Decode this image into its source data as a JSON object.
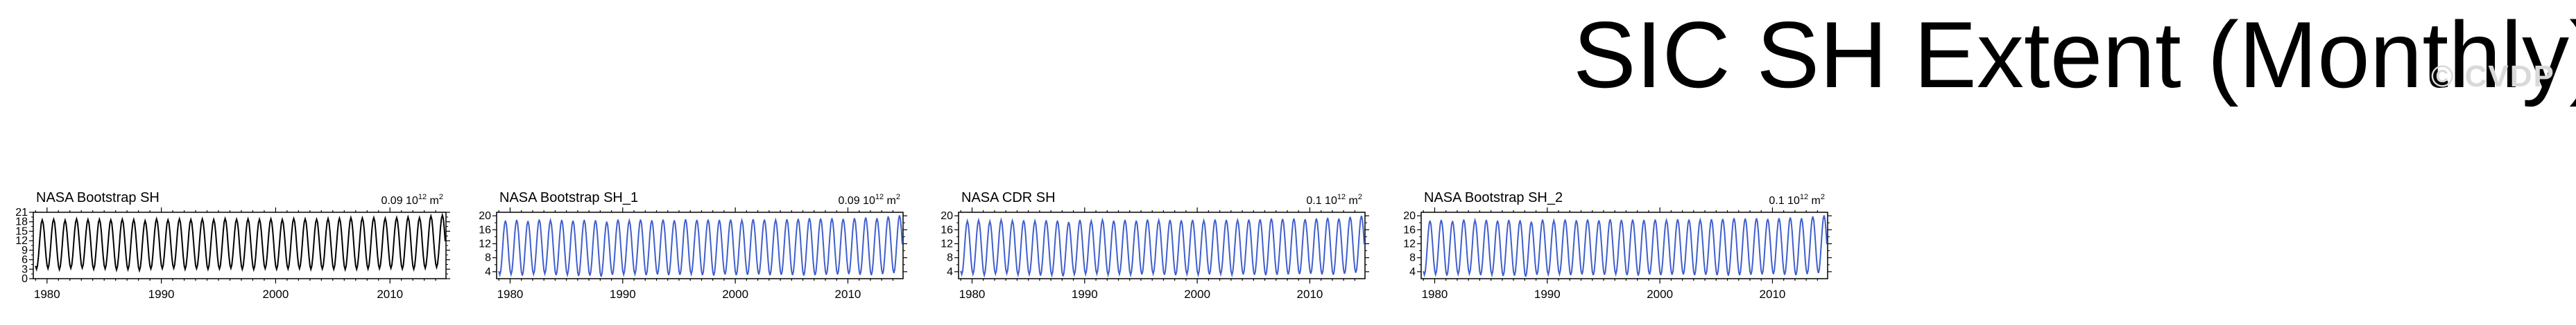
{
  "page": {
    "title": "SIC SH Extent (Monthly)",
    "watermark": "© CVDP"
  },
  "chart_data": [
    {
      "type": "line",
      "title": "NASA Bootstrap SH",
      "rms_value": "0.09",
      "rms_unit": "10",
      "rms_exp": "12",
      "rms_suffix": "m",
      "rms_suffix_exp": "2",
      "line_color": "#000000",
      "xlim": [
        1978.8,
        2014.9
      ],
      "ylim": [
        0,
        21
      ],
      "x_ticks": [
        1980,
        1990,
        2000,
        2010
      ],
      "y_ticks": [
        0,
        3,
        6,
        9,
        12,
        15,
        18,
        21
      ],
      "series": [
        {
          "min": [
            3.0,
            3.2,
            2.9,
            3.3,
            3.4,
            3.0,
            3.1,
            2.8,
            2.9,
            2.6,
            3.1,
            3.2,
            3.3,
            3.0,
            3.2,
            3.0,
            3.1,
            3.3,
            3.0,
            2.9,
            3.2,
            3.0,
            3.1,
            3.2,
            3.0,
            3.1,
            3.0,
            2.9,
            3.0,
            3.1,
            3.2,
            3.3,
            3.1,
            3.0,
            3.3,
            3.6
          ],
          "max": [
            18.6,
            18.8,
            18.5,
            18.9,
            18.7,
            18.8,
            18.6,
            18.8,
            18.7,
            18.3,
            18.9,
            18.6,
            18.9,
            18.7,
            18.9,
            18.7,
            19.0,
            18.8,
            18.9,
            18.8,
            18.9,
            18.7,
            19.0,
            18.9,
            18.8,
            19.0,
            19.1,
            19.3,
            19.2,
            19.3,
            19.1,
            19.3,
            19.5,
            19.3,
            19.8,
            20.1
          ]
        }
      ]
    },
    {
      "type": "line",
      "title": "NASA Bootstrap SH_1",
      "rms_value": "0.09",
      "rms_unit": "10",
      "rms_exp": "12",
      "rms_suffix": "m",
      "rms_suffix_exp": "2",
      "line_color": "#3f5fce",
      "xlim": [
        1978.8,
        2014.9
      ],
      "ylim": [
        2,
        21
      ],
      "x_ticks": [
        1980,
        1990,
        2000,
        2010
      ],
      "y_ticks": [
        4,
        8,
        12,
        16,
        20
      ],
      "series": [
        {
          "min": [
            3.1,
            3.2,
            2.9,
            3.3,
            3.4,
            3.0,
            3.1,
            2.8,
            2.9,
            2.6,
            3.1,
            3.2,
            3.3,
            3.0,
            3.2,
            3.0,
            3.1,
            3.3,
            3.0,
            2.9,
            3.2,
            3.0,
            3.1,
            3.2,
            3.0,
            3.1,
            3.0,
            2.9,
            3.0,
            3.1,
            3.2,
            3.3,
            3.1,
            3.0,
            3.3,
            3.6
          ],
          "max": [
            18.6,
            18.8,
            18.5,
            18.9,
            18.7,
            18.8,
            18.6,
            18.8,
            18.7,
            18.3,
            18.9,
            18.6,
            18.9,
            18.7,
            18.9,
            18.7,
            19.0,
            18.8,
            18.9,
            18.8,
            18.9,
            18.7,
            19.0,
            18.9,
            18.8,
            19.0,
            19.1,
            19.3,
            19.2,
            19.3,
            19.1,
            19.3,
            19.5,
            19.3,
            19.8,
            20.1
          ]
        }
      ]
    },
    {
      "type": "line",
      "title": "NASA CDR SH",
      "rms_value": "0.1",
      "rms_unit": "10",
      "rms_exp": "12",
      "rms_suffix": "m",
      "rms_suffix_exp": "2",
      "line_color": "#3f5fce",
      "xlim": [
        1978.8,
        2014.9
      ],
      "ylim": [
        2,
        21
      ],
      "x_ticks": [
        1980,
        1990,
        2000,
        2010
      ],
      "y_ticks": [
        4,
        8,
        12,
        16,
        20
      ],
      "series": [
        {
          "min": [
            3.2,
            3.3,
            3.0,
            3.4,
            3.5,
            3.1,
            3.2,
            2.9,
            3.0,
            2.7,
            3.2,
            3.3,
            3.4,
            3.1,
            3.3,
            3.1,
            3.2,
            3.4,
            3.1,
            3.0,
            3.3,
            3.1,
            3.2,
            3.3,
            3.1,
            3.2,
            3.1,
            3.0,
            3.1,
            3.2,
            3.3,
            3.4,
            3.2,
            3.1,
            3.4,
            3.7
          ],
          "max": [
            18.5,
            18.7,
            18.4,
            18.8,
            18.6,
            18.7,
            18.5,
            18.7,
            18.6,
            18.2,
            18.8,
            18.5,
            18.8,
            18.6,
            18.8,
            18.6,
            18.9,
            18.7,
            18.8,
            18.7,
            18.8,
            18.6,
            18.9,
            18.8,
            18.7,
            18.9,
            19.0,
            19.2,
            19.1,
            19.2,
            19.0,
            19.2,
            19.4,
            19.2,
            19.7,
            20.0
          ]
        }
      ]
    },
    {
      "type": "line",
      "title": "NASA Bootstrap SH_2",
      "rms_value": "0.1",
      "rms_unit": "10",
      "rms_exp": "12",
      "rms_suffix": "m",
      "rms_suffix_exp": "2",
      "line_color": "#3f5fce",
      "xlim": [
        1978.8,
        2014.9
      ],
      "ylim": [
        2,
        21
      ],
      "x_ticks": [
        1980,
        1990,
        2000,
        2010
      ],
      "y_ticks": [
        4,
        8,
        12,
        16,
        20
      ],
      "series": [
        {
          "min": [
            3.1,
            3.2,
            2.9,
            3.3,
            3.4,
            3.0,
            3.1,
            2.8,
            2.9,
            2.6,
            3.1,
            3.2,
            3.3,
            3.0,
            3.2,
            3.0,
            3.1,
            3.3,
            3.0,
            2.9,
            3.2,
            3.0,
            3.1,
            3.2,
            3.0,
            3.1,
            3.0,
            2.9,
            3.0,
            3.1,
            3.2,
            3.3,
            3.1,
            3.0,
            3.3,
            3.6
          ],
          "max": [
            18.6,
            18.8,
            18.5,
            18.9,
            18.7,
            18.8,
            18.6,
            18.8,
            18.7,
            18.3,
            18.9,
            18.6,
            18.9,
            18.7,
            18.9,
            18.7,
            19.0,
            18.8,
            18.9,
            18.8,
            18.9,
            18.7,
            19.0,
            18.9,
            18.8,
            19.0,
            19.1,
            19.3,
            19.2,
            19.3,
            19.1,
            19.3,
            19.5,
            19.3,
            19.8,
            20.1
          ]
        }
      ]
    }
  ]
}
